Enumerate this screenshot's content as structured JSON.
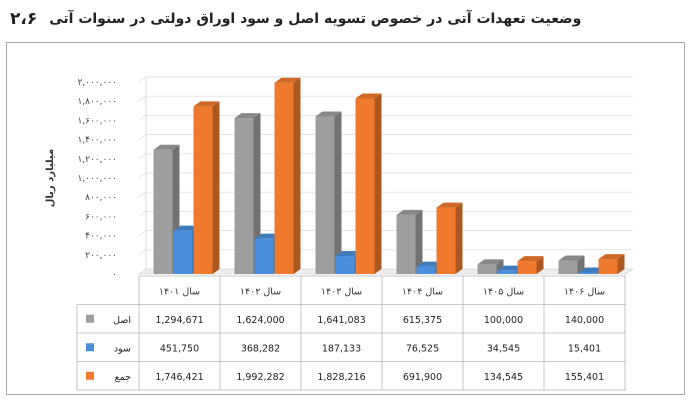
{
  "header": {
    "number": "۲،۶",
    "title": "وضعیت تعهدات آتی در خصوص تسویه اصل و سود اوراق دولتی در سنوات آتی"
  },
  "colors": {
    "asl": "#9e9e9e",
    "sood": "#4a8fdc",
    "jam": "#ef7a2e",
    "grid": "#d9d9d9",
    "border": "#a9a9a9"
  },
  "chart_data": {
    "type": "bar",
    "ylabel": "میلیارد ریال",
    "ylim": [
      0,
      2000000
    ],
    "yticks": [
      0,
      200000,
      400000,
      600000,
      800000,
      1000000,
      1200000,
      1400000,
      1600000,
      1800000,
      2000000
    ],
    "ytick_labels": [
      "۰",
      "۲۰۰,۰۰۰",
      "۴۰۰,۰۰۰",
      "۶۰۰,۰۰۰",
      "۸۰۰,۰۰۰",
      "۱,۰۰۰,۰۰۰",
      "۱,۲۰۰,۰۰۰",
      "۱,۴۰۰,۰۰۰",
      "۱,۶۰۰,۰۰۰",
      "۱,۸۰۰,۰۰۰",
      "۲,۰۰۰,۰۰۰"
    ],
    "categories": [
      "سال ۱۴۰۱",
      "سال ۱۴۰۲",
      "سال ۱۴۰۳",
      "سال ۱۴۰۴",
      "سال ۱۴۰۵",
      "سال ۱۴۰۶"
    ],
    "series": [
      {
        "name": "اصل",
        "color": "#9e9e9e",
        "values": [
          1294671,
          1624000,
          1641083,
          615375,
          100000,
          140000
        ],
        "labels": [
          "1,294,671",
          "1,624,000",
          "1,641,083",
          "615,375",
          "100,000",
          "140,000"
        ]
      },
      {
        "name": "سود",
        "color": "#4a8fdc",
        "values": [
          451750,
          368282,
          187133,
          76525,
          34545,
          15401
        ],
        "labels": [
          "451,750",
          "368,282",
          "187,133",
          "76,525",
          "34,545",
          "15,401"
        ]
      },
      {
        "name": "جمع",
        "color": "#ef7a2e",
        "values": [
          1746421,
          1992282,
          1828216,
          691900,
          134545,
          155401
        ],
        "labels": [
          "1,746,421",
          "1,992,282",
          "1,828,216",
          "691,900",
          "134,545",
          "155,401"
        ]
      }
    ],
    "grid": true,
    "legend": "table-left"
  }
}
